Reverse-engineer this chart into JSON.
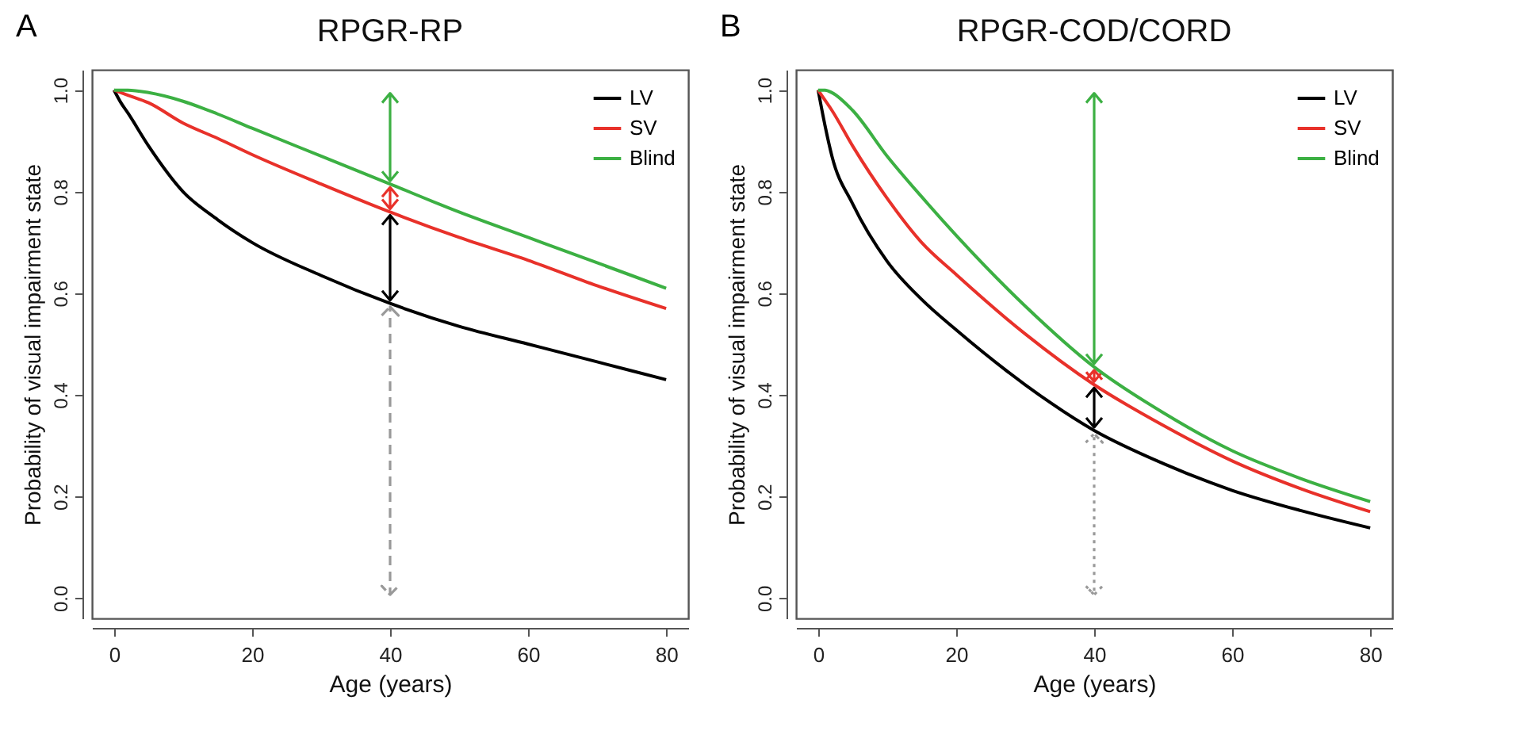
{
  "chart_data": [
    {
      "type": "line",
      "title": "RPGR-RP",
      "xlabel": "Age (years)",
      "ylabel": "Probability of visual impairment state",
      "annotations": [
        "A"
      ],
      "x": [
        0,
        1,
        2,
        5,
        10,
        15,
        20,
        30,
        40,
        50,
        60,
        70,
        80
      ],
      "series": [
        {
          "name": "LV",
          "color": "#000000",
          "values": [
            1.0,
            0.975,
            0.955,
            0.89,
            0.8,
            0.745,
            0.7,
            0.635,
            0.58,
            0.535,
            0.5,
            0.465,
            0.43
          ]
        },
        {
          "name": "SV",
          "color": "#e8312a",
          "values": [
            1.0,
            0.995,
            0.99,
            0.975,
            0.935,
            0.905,
            0.873,
            0.815,
            0.76,
            0.71,
            0.665,
            0.615,
            0.57
          ]
        },
        {
          "name": "Blind",
          "color": "#3cb043",
          "values": [
            1.0,
            1.0,
            1.0,
            0.995,
            0.978,
            0.953,
            0.925,
            0.87,
            0.815,
            0.76,
            0.71,
            0.66,
            0.61
          ]
        }
      ],
      "xlim": [
        -3.2,
        83.2
      ],
      "ylim": [
        -0.04,
        1.04
      ],
      "xticks": [
        0,
        20,
        40,
        60,
        80
      ],
      "yticks": [
        {
          "value": 0,
          "label": "0.0"
        },
        {
          "value": 0.2,
          "label": "0.2"
        },
        {
          "value": 0.4,
          "label": "0.4"
        },
        {
          "value": 0.6,
          "label": "0.6"
        },
        {
          "value": 0.8,
          "label": "0.8"
        },
        {
          "value": 1,
          "label": "1.0"
        }
      ],
      "ref_lines": [
        {
          "axis": "x",
          "value": 40,
          "color": "#999999",
          "line_style": "dashed"
        }
      ],
      "legend": "top right",
      "grid": false,
      "marker": "none",
      "line_style": "solid"
    },
    {
      "type": "line",
      "title": "RPGR-COD/CORD",
      "xlabel": "Age (years)",
      "ylabel": "Probability of visual impairment state",
      "annotations": [
        "B"
      ],
      "x": [
        0,
        1,
        2,
        5,
        10,
        15,
        20,
        30,
        40,
        50,
        60,
        70,
        80
      ],
      "series": [
        {
          "name": "LV",
          "color": "#000000",
          "values": [
            1.0,
            0.93,
            0.87,
            0.776,
            0.663,
            0.588,
            0.528,
            0.42,
            0.33,
            0.265,
            0.212,
            0.172,
            0.138
          ]
        },
        {
          "name": "SV",
          "color": "#e8312a",
          "values": [
            1.0,
            0.98,
            0.96,
            0.89,
            0.787,
            0.7,
            0.637,
            0.52,
            0.42,
            0.34,
            0.27,
            0.215,
            0.17
          ]
        },
        {
          "name": "Blind",
          "color": "#3cb043",
          "values": [
            1.0,
            1.0,
            0.995,
            0.96,
            0.87,
            0.79,
            0.714,
            0.575,
            0.455,
            0.365,
            0.29,
            0.235,
            0.19
          ]
        }
      ],
      "xlim": [
        -3.2,
        83.2
      ],
      "ylim": [
        -0.04,
        1.04
      ],
      "xticks": [
        0,
        20,
        40,
        60,
        80
      ],
      "yticks": [
        {
          "value": 0,
          "label": "0.0"
        },
        {
          "value": 0.2,
          "label": "0.2"
        },
        {
          "value": 0.4,
          "label": "0.4"
        },
        {
          "value": 0.6,
          "label": "0.6"
        },
        {
          "value": 0.8,
          "label": "0.8"
        },
        {
          "value": 1,
          "label": "1.0"
        }
      ],
      "ref_lines": [
        {
          "axis": "x",
          "value": 40,
          "color": "#999999",
          "line_style": "dotted"
        }
      ],
      "legend": "top right",
      "grid": false,
      "marker": "none",
      "line_style": "solid"
    }
  ]
}
